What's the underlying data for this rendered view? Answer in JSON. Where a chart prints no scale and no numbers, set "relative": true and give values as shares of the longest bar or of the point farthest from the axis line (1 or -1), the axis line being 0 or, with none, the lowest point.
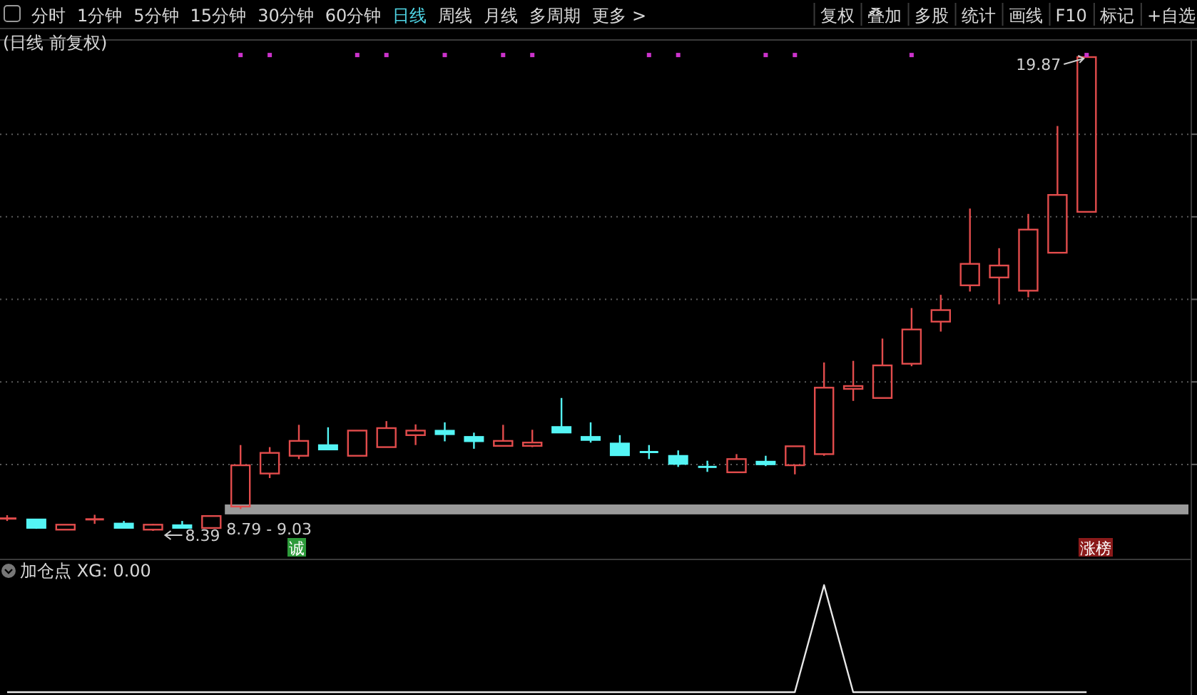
{
  "chart_data": [
    {
      "type": "other",
      "annotations": [
        "分时",
        "1分钟",
        "5分钟",
        "15分钟",
        "30分钟",
        "60分钟",
        "日线",
        "周线",
        "月线",
        "多周期",
        "更多 >",
        "复权",
        "叠加",
        "多股",
        "统计",
        "画线",
        "F10",
        "标记",
        "+自选"
      ]
    },
    {
      "type": "candlestick",
      "title": "(日线 前复权)",
      "categories": [
        null,
        null,
        null,
        null,
        null,
        null,
        null,
        null,
        null,
        null,
        null,
        null,
        null,
        null,
        null,
        null,
        null,
        null,
        null,
        null,
        null,
        null,
        null,
        null,
        null,
        null,
        null,
        null,
        null,
        null,
        null,
        null,
        null,
        null,
        null,
        null,
        null,
        null
      ],
      "ohlc": [
        [
          8.69,
          8.77,
          8.63,
          8.69
        ],
        [
          8.67,
          8.67,
          8.44,
          8.46
        ],
        [
          8.42,
          8.54,
          8.42,
          8.54
        ],
        [
          8.67,
          8.78,
          8.56,
          8.67
        ],
        [
          8.57,
          8.63,
          8.46,
          8.46
        ],
        [
          8.42,
          8.56,
          8.39,
          8.54
        ],
        [
          8.53,
          8.63,
          8.46,
          8.46
        ],
        [
          8.46,
          8.75,
          8.44,
          8.75
        ],
        [
          8.98,
          10.47,
          8.92,
          9.98
        ],
        [
          9.78,
          10.42,
          9.67,
          10.28
        ],
        [
          10.21,
          10.96,
          10.13,
          10.57
        ],
        [
          10.47,
          10.9,
          10.36,
          10.36
        ],
        [
          10.21,
          10.82,
          10.21,
          10.82
        ],
        [
          10.42,
          11.05,
          10.42,
          10.88
        ],
        [
          10.71,
          10.97,
          10.47,
          10.82
        ],
        [
          10.82,
          11.02,
          10.56,
          10.73
        ],
        [
          10.67,
          10.77,
          10.38,
          10.56
        ],
        [
          10.45,
          10.96,
          10.45,
          10.57
        ],
        [
          10.45,
          10.84,
          10.42,
          10.53
        ],
        [
          10.91,
          11.61,
          10.77,
          10.77
        ],
        [
          10.67,
          11.02,
          10.53,
          10.59
        ],
        [
          10.51,
          10.71,
          10.22,
          10.22
        ],
        [
          10.3,
          10.47,
          10.13,
          10.3
        ],
        [
          10.21,
          10.34,
          9.94,
          10.01
        ],
        [
          9.94,
          10.09,
          9.82,
          9.94
        ],
        [
          9.81,
          10.25,
          9.81,
          10.13
        ],
        [
          10.07,
          10.21,
          9.96,
          10.0
        ],
        [
          9.98,
          10.44,
          9.76,
          10.44
        ],
        [
          10.25,
          12.47,
          10.21,
          11.86
        ],
        [
          11.84,
          12.51,
          11.54,
          11.9
        ],
        [
          11.61,
          13.05,
          11.61,
          12.4
        ],
        [
          12.44,
          13.79,
          12.38,
          13.27
        ],
        [
          13.46,
          14.11,
          13.22,
          13.74
        ],
        [
          14.34,
          16.2,
          14.19,
          14.86
        ],
        [
          14.53,
          15.24,
          13.88,
          14.82
        ],
        [
          14.21,
          16.07,
          14.05,
          15.69
        ],
        [
          15.13,
          18.2,
          15.13,
          16.53
        ],
        [
          16.12,
          19.87,
          16.12,
          19.87
        ]
      ],
      "colors": [
        "#e24c4c",
        "#54f5f5",
        "#e24c4c",
        "#e24c4c",
        "#54f5f5",
        "#e24c4c",
        "#54f5f5",
        "#e24c4c",
        "#e24c4c",
        "#e24c4c",
        "#e24c4c",
        "#54f5f5",
        "#e24c4c",
        "#e24c4c",
        "#e24c4c",
        "#54f5f5",
        "#54f5f5",
        "#e24c4c",
        "#e24c4c",
        "#54f5f5",
        "#54f5f5",
        "#54f5f5",
        "#54f5f5",
        "#54f5f5",
        "#54f5f5",
        "#e24c4c",
        "#54f5f5",
        "#e24c4c",
        "#e24c4c",
        "#e24c4c",
        "#e24c4c",
        "#e24c4c",
        "#e24c4c",
        "#e24c4c",
        "#e24c4c",
        "#e24c4c",
        "#e24c4c",
        "#e24c4c"
      ],
      "series": [
        {
          "type": "scatter",
          "color": "#cc33cc",
          "values": [
            null,
            null,
            null,
            null,
            null,
            null,
            null,
            null,
            19.92,
            19.92,
            null,
            null,
            19.92,
            19.92,
            null,
            19.92,
            null,
            19.92,
            19.92,
            null,
            null,
            null,
            19.92,
            19.92,
            null,
            null,
            19.92,
            19.92,
            null,
            null,
            null,
            19.92,
            null,
            null,
            null,
            null,
            null,
            19.92
          ]
        }
      ],
      "yticks": [
        {
          "value": 10,
          "label": null
        },
        {
          "value": 12,
          "label": null
        },
        {
          "value": 14,
          "label": null
        },
        {
          "value": 16,
          "label": null
        },
        {
          "value": 18,
          "label": null
        }
      ],
      "grid": "y",
      "bands": [
        {
          "axis": "y",
          "from": 8.79,
          "to": 9.03,
          "label": "8.79 - 9.03",
          "color": "#9a9a9a"
        }
      ],
      "annotations": [
        "8.39",
        "19.87",
        "诚",
        "涨榜"
      ]
    },
    {
      "type": "line",
      "title": "加仓点 XG: 0.00",
      "relative": true,
      "categories": [
        null,
        null,
        null,
        null,
        null,
        null,
        null,
        null,
        null,
        null,
        null,
        null,
        null,
        null,
        null,
        null,
        null,
        null,
        null,
        null,
        null,
        null,
        null,
        null,
        null,
        null,
        null,
        null,
        null,
        null,
        null,
        null,
        null,
        null,
        null,
        null,
        null,
        null
      ],
      "series": [
        {
          "color": "#e8e8e8",
          "values": [
            0,
            0,
            0,
            0,
            0,
            0,
            0,
            0,
            0,
            0,
            0,
            0,
            0,
            0,
            0,
            0,
            0,
            0,
            0,
            0,
            0,
            0,
            0,
            0,
            0,
            0,
            0,
            0,
            1,
            0,
            0,
            0,
            0,
            0,
            0,
            0,
            0,
            0
          ]
        }
      ]
    }
  ]
}
